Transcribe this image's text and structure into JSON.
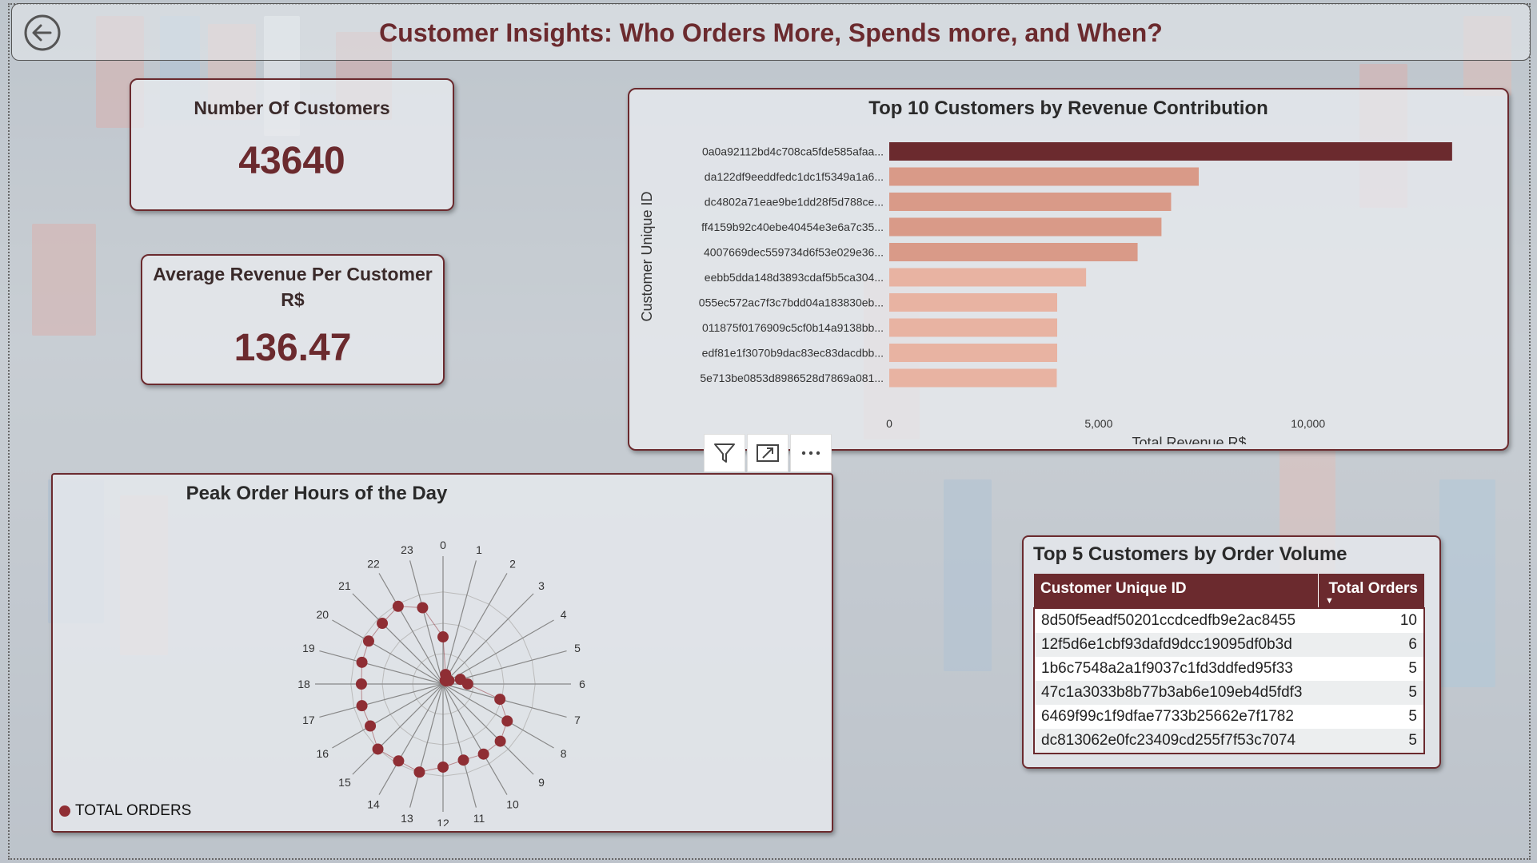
{
  "header": {
    "title": "Customer Insights: Who Orders More, Spends more, and When?"
  },
  "kpis": {
    "customers": {
      "label": "Number Of Customers",
      "value": "43640"
    },
    "avg_revenue": {
      "label_line1": "Average Revenue Per Customer",
      "label_line2": "R$",
      "value": "136.47"
    }
  },
  "icons": {
    "back": "back-arrow-icon",
    "filter": "filter-icon",
    "focus": "focus-mode-icon",
    "more": "more-options-icon"
  },
  "colors": {
    "accent": "#6b2a2e",
    "bar_top": "#6b2a2e",
    "bar_mid": "#d99a88",
    "bar_low": "#e8b3a2",
    "radar_dot": "#8f2e34"
  },
  "top5": {
    "title": "Top 5 Customers by Order Volume",
    "columns": [
      "Customer Unique ID",
      "Total Orders"
    ],
    "rows": [
      [
        "8d50f5eadf50201ccdcedfb9e2ac8455",
        "10"
      ],
      [
        "12f5d6e1cbf93dafd9dcc19095df0b3d",
        "6"
      ],
      [
        "1b6c7548a2a1f9037c1fd3ddfed95f33",
        "5"
      ],
      [
        "47c1a3033b8b77b3ab6e109eb4d5fdf3",
        "5"
      ],
      [
        "6469f99c1f9dfae7733b25662e7f1782",
        "5"
      ],
      [
        "dc813062e0fc23409cd255f7f53c7074",
        "5"
      ]
    ]
  },
  "chart_data": [
    {
      "type": "bar",
      "orientation": "horizontal",
      "title": "Top 10 Customers by Revenue Contribution",
      "xlabel": "Total Revenue R$",
      "ylabel": "Customer Unique ID",
      "xlim": [
        0,
        13500
      ],
      "xticks": [
        "0",
        "5,000",
        "10,000"
      ],
      "xtick_values": [
        0,
        5000,
        10000
      ],
      "categories": [
        "0a0a92112bd4c708ca5fde585afaa...",
        "da122df9eeddfedc1dc1f5349a1a6...",
        "dc4802a71eae9be1dd28f5d788ce...",
        "ff4159b92c40ebe40454e3e6a7c35...",
        "4007669dec559734d6f53e029e36...",
        "eebb5dda148d3893cdaf5b5ca304...",
        "055ec572ac7f3c7bdd04a183830eb...",
        "011875f0176909c5cf0b14a9138bb...",
        "edf81e1f3070b9dac83ec83dacdbb...",
        "5e713be0853d8986528d7869a081..."
      ],
      "values": [
        13440,
        7390,
        6730,
        6500,
        5930,
        4700,
        4010,
        4010,
        4010,
        4000
      ]
    },
    {
      "type": "radar",
      "title": "Peak Order Hours of the Day",
      "categories": [
        "0",
        "1",
        "2",
        "3",
        "4",
        "5",
        "6",
        "7",
        "8",
        "9",
        "10",
        "11",
        "12",
        "13",
        "14",
        "15",
        "16",
        "17",
        "18",
        "19",
        "20",
        "21",
        "22",
        "23"
      ],
      "series": [
        {
          "name": "TOTAL ORDERS",
          "values": [
            2200,
            460,
            200,
            200,
            320,
            840,
            1150,
            2750,
            3460,
            3780,
            3780,
            3680,
            3880,
            4260,
            4150,
            4300,
            3920,
            3920,
            3810,
            3920,
            4010,
            4010,
            4190,
            3690
          ]
        }
      ],
      "rmax": 4300,
      "legend": "bottom-left"
    }
  ]
}
